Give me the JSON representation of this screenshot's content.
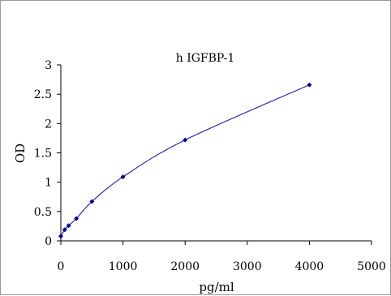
{
  "chart_data": {
    "type": "scatter",
    "title": "h IGFBP-1",
    "xlabel": "pg/ml",
    "ylabel": "OD",
    "xlim": [
      0,
      5000
    ],
    "ylim": [
      0,
      3
    ],
    "x_ticks": [
      "0",
      "1000",
      "2000",
      "3000",
      "4000",
      "5000"
    ],
    "y_ticks": [
      "0",
      "0.5",
      "1",
      "1.5",
      "2",
      "2.5",
      "3"
    ],
    "grid": false,
    "legend": "none",
    "series": [
      {
        "x": [
          0,
          62.5,
          125,
          250,
          500,
          1000,
          2000,
          4000
        ],
        "y": [
          0.08,
          0.19,
          0.26,
          0.38,
          0.67,
          1.09,
          1.72,
          2.66
        ],
        "marker": "diamond",
        "marker_color": "#00008b",
        "line": "smooth",
        "line_color": "#1f1f9e"
      }
    ]
  }
}
